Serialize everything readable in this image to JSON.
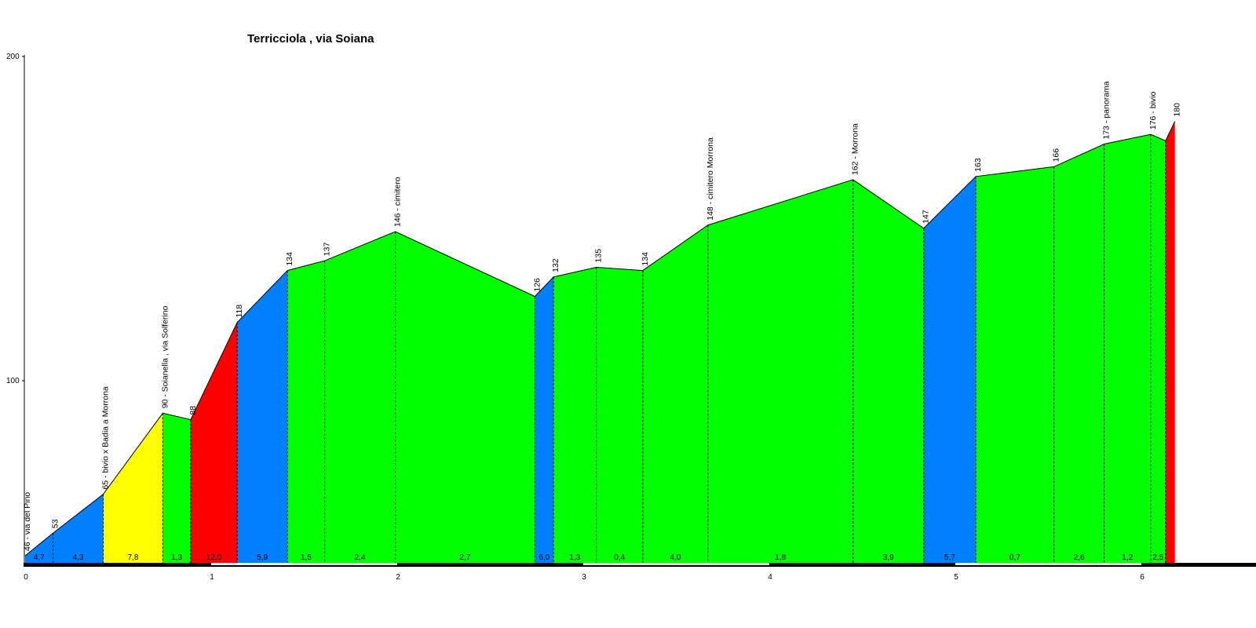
{
  "chart_data": {
    "type": "area",
    "title": "Terricciola , via Soiana",
    "xlabel": "",
    "ylabel": "",
    "xlim": [
      0,
      6.5
    ],
    "ylim": [
      42,
      200
    ],
    "y_ticks": [
      "100",
      "200"
    ],
    "x_ticks": [
      "0",
      "1",
      "2",
      "3",
      "4",
      "5",
      "6"
    ],
    "grid": false,
    "colors": {
      "green": "#00ff00",
      "blue": "#0080ff",
      "yellow": "#ffff00",
      "red": "#ff0000"
    },
    "points": [
      {
        "x": 0.0,
        "y": 46,
        "label": "46 - via del Pino"
      },
      {
        "x": 0.15,
        "y": 53,
        "label": "53"
      },
      {
        "x": 0.42,
        "y": 65,
        "label": "65 - bivio x Badia a Morrona"
      },
      {
        "x": 0.74,
        "y": 90,
        "label": "90 - Soianella , via Solferino"
      },
      {
        "x": 0.89,
        "y": 88,
        "label": "88"
      },
      {
        "x": 1.14,
        "y": 118,
        "label": "118"
      },
      {
        "x": 1.41,
        "y": 134,
        "label": "134"
      },
      {
        "x": 1.61,
        "y": 137,
        "label": "137"
      },
      {
        "x": 1.99,
        "y": 146,
        "label": "146 - cimitero"
      },
      {
        "x": 2.74,
        "y": 126,
        "label": "126"
      },
      {
        "x": 2.84,
        "y": 132,
        "label": "132"
      },
      {
        "x": 3.07,
        "y": 135,
        "label": "135"
      },
      {
        "x": 3.32,
        "y": 134,
        "label": "134"
      },
      {
        "x": 3.67,
        "y": 148,
        "label": "148 - cimitero Morrona"
      },
      {
        "x": 4.45,
        "y": 162,
        "label": "162 - Morrona"
      },
      {
        "x": 4.83,
        "y": 147,
        "label": "147"
      },
      {
        "x": 5.11,
        "y": 163,
        "label": "163"
      },
      {
        "x": 5.53,
        "y": 166,
        "label": "166"
      },
      {
        "x": 5.8,
        "y": 173,
        "label": "173 - panorama"
      },
      {
        "x": 6.05,
        "y": 176,
        "label": "176 - bivio"
      },
      {
        "x": 6.13,
        "y": 174,
        "label": ""
      },
      {
        "x": 6.18,
        "y": 180,
        "label": "180"
      }
    ],
    "segments": [
      {
        "grade": "4,7",
        "color": "blue"
      },
      {
        "grade": "4,3",
        "color": "blue"
      },
      {
        "grade": "7,8",
        "color": "yellow"
      },
      {
        "grade": "1,3",
        "color": "green"
      },
      {
        "grade": "12,0",
        "color": "red"
      },
      {
        "grade": "5,9",
        "color": "blue"
      },
      {
        "grade": "1,5",
        "color": "green"
      },
      {
        "grade": "2,4",
        "color": "green"
      },
      {
        "grade": "2,7",
        "color": "green"
      },
      {
        "grade": "6,0",
        "color": "blue"
      },
      {
        "grade": "1,3",
        "color": "green"
      },
      {
        "grade": "0,4",
        "color": "green"
      },
      {
        "grade": "4,0",
        "color": "green"
      },
      {
        "grade": "1,8",
        "color": "green"
      },
      {
        "grade": "3,9",
        "color": "green"
      },
      {
        "grade": "5,7",
        "color": "blue"
      },
      {
        "grade": "0,7",
        "color": "green"
      },
      {
        "grade": "2,6",
        "color": "green"
      },
      {
        "grade": "1,2",
        "color": "green"
      },
      {
        "grade": "2,5",
        "color": "green"
      },
      {
        "grade": "",
        "color": "red"
      }
    ]
  }
}
